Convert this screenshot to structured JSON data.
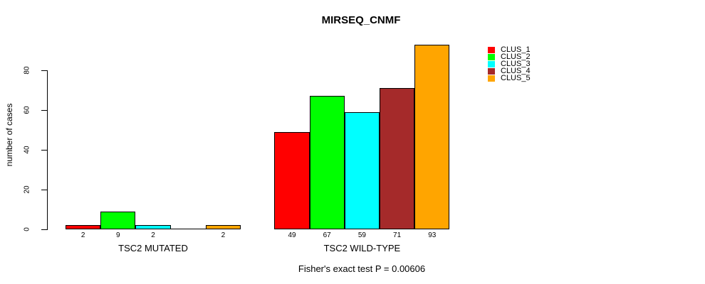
{
  "chart_data": {
    "type": "bar",
    "title": "MIRSEQ_CNMF",
    "ylabel": "number of cases",
    "xlabel": "",
    "footer": "Fisher's exact test P = 0.00606",
    "yticks": [
      0,
      20,
      40,
      60,
      80
    ],
    "ylim": [
      0,
      93
    ],
    "grid": false,
    "legend_position": "right",
    "categories": [
      "CLUS_1",
      "CLUS_2",
      "CLUS_3",
      "CLUS_4",
      "CLUS_5"
    ],
    "colors": [
      "#FF0000",
      "#00FF00",
      "#00FFFF",
      "#A52A2A",
      "#FFA500"
    ],
    "bar_border_color": "#000000",
    "groups": [
      {
        "label": "TSC2 MUTATED",
        "values": [
          2,
          9,
          2,
          0,
          2
        ],
        "value_labels": [
          "2",
          "9",
          "2",
          "",
          "2"
        ]
      },
      {
        "label": "TSC2 WILD-TYPE",
        "values": [
          49,
          67,
          59,
          71,
          93
        ],
        "value_labels": [
          "49",
          "67",
          "59",
          "71",
          "93"
        ]
      }
    ]
  }
}
